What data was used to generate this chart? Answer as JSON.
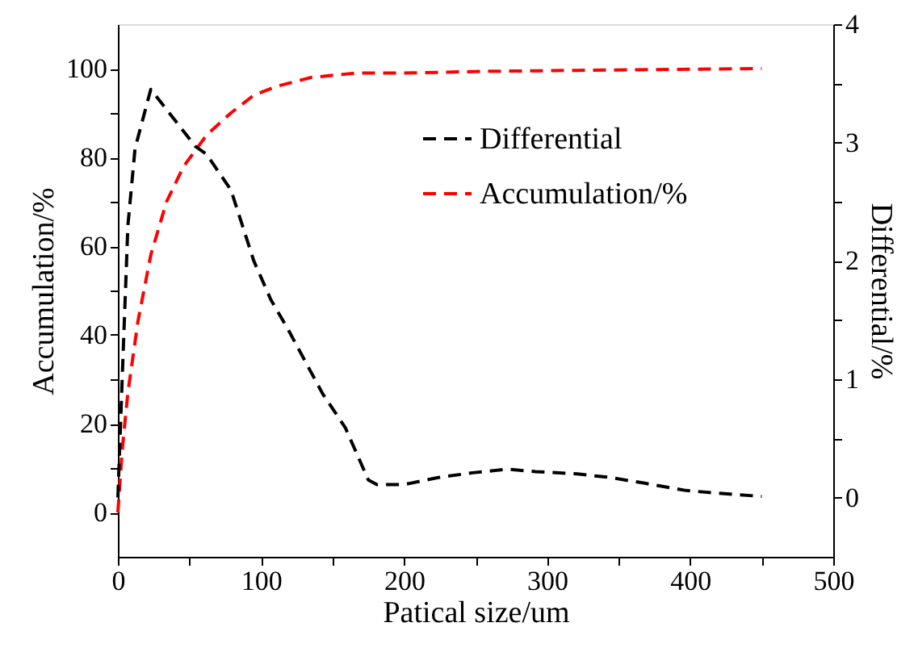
{
  "chart_data": {
    "type": "line",
    "xlabel": "Patical size/um",
    "ylabel": "Accumulation/%",
    "y2label": "Differential/%",
    "xlim": [
      0,
      500
    ],
    "xticks": [
      0,
      {
        "value": 50,
        "label": null
      },
      100,
      {
        "value": 150,
        "label": null
      },
      200,
      {
        "value": 250,
        "label": null
      },
      300,
      {
        "value": 350,
        "label": null
      },
      400,
      {
        "value": 450,
        "label": null
      },
      500
    ],
    "ylim": [
      -10,
      110
    ],
    "yticks": [
      0,
      {
        "value": 10,
        "label": null
      },
      20,
      {
        "value": 30,
        "label": null
      },
      40,
      {
        "value": 50,
        "label": null
      },
      60,
      {
        "value": 70,
        "label": null
      },
      80,
      {
        "value": 90,
        "label": null
      },
      100
    ],
    "y2lim": [
      -0.5,
      4
    ],
    "y2ticks": [
      0,
      {
        "value": 0.5,
        "label": null
      },
      1,
      {
        "value": 1.5,
        "label": null
      },
      2,
      {
        "value": 2.5,
        "label": null
      },
      3,
      {
        "value": 3.5,
        "label": null
      },
      4
    ],
    "grid": false,
    "legend": "top right",
    "marker": "none",
    "line_style": "dashed",
    "series": [
      {
        "name": "Differential",
        "color": "#000000",
        "axis": "y2",
        "x": [
          0,
          3,
          7,
          12,
          23,
          54,
          62,
          79,
          95,
          107,
          119,
          143,
          159,
          175,
          181,
          200,
          224,
          248,
          272,
          292,
          321,
          344,
          369,
          397,
          417,
          450
        ],
        "values": [
          0,
          1.0,
          2.3,
          2.95,
          3.45,
          2.97,
          2.9,
          2.6,
          2.0,
          1.67,
          1.42,
          0.88,
          0.59,
          0.15,
          0.11,
          0.11,
          0.17,
          0.21,
          0.24,
          0.22,
          0.2,
          0.17,
          0.12,
          0.06,
          0.04,
          0.01
        ]
      },
      {
        "name": "Accumulation/%",
        "color": "#ff0000",
        "axis": "y",
        "x": [
          0,
          3,
          7,
          14,
          23,
          34,
          46,
          62,
          79,
          95,
          111,
          135,
          167,
          200,
          260,
          321,
          450
        ],
        "values": [
          0,
          14,
          27,
          43,
          58,
          70,
          78,
          85,
          90,
          94,
          96,
          98,
          99,
          99,
          99.4,
          99.6,
          100
        ]
      }
    ]
  }
}
